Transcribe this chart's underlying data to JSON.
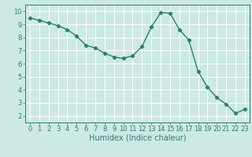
{
  "x": [
    0,
    1,
    2,
    3,
    4,
    5,
    6,
    7,
    8,
    9,
    10,
    11,
    12,
    13,
    14,
    15,
    16,
    17,
    18,
    19,
    20,
    21,
    22,
    23
  ],
  "y": [
    9.5,
    9.3,
    9.1,
    8.9,
    8.6,
    8.1,
    7.4,
    7.2,
    6.8,
    6.5,
    6.4,
    6.6,
    7.3,
    8.8,
    9.9,
    9.85,
    8.6,
    7.8,
    5.4,
    4.2,
    3.4,
    2.9,
    2.2,
    2.5
  ],
  "xlabel": "Humidex (Indice chaleur)",
  "ylim": [
    1.5,
    10.5
  ],
  "xlim": [
    -0.5,
    23.5
  ],
  "yticks": [
    2,
    3,
    4,
    5,
    6,
    7,
    8,
    9,
    10
  ],
  "xticks": [
    0,
    1,
    2,
    3,
    4,
    5,
    6,
    7,
    8,
    9,
    10,
    11,
    12,
    13,
    14,
    15,
    16,
    17,
    18,
    19,
    20,
    21,
    22,
    23
  ],
  "line_color": "#2e7d6e",
  "marker": "D",
  "marker_size": 2.2,
  "bg_color": "#cce9e5",
  "grid_color": "#ffffff",
  "axis_color": "#2e7d6e",
  "label_color": "#2e7d6e",
  "line_width": 1.0,
  "tick_fontsize": 6.0,
  "xlabel_fontsize": 7.0
}
